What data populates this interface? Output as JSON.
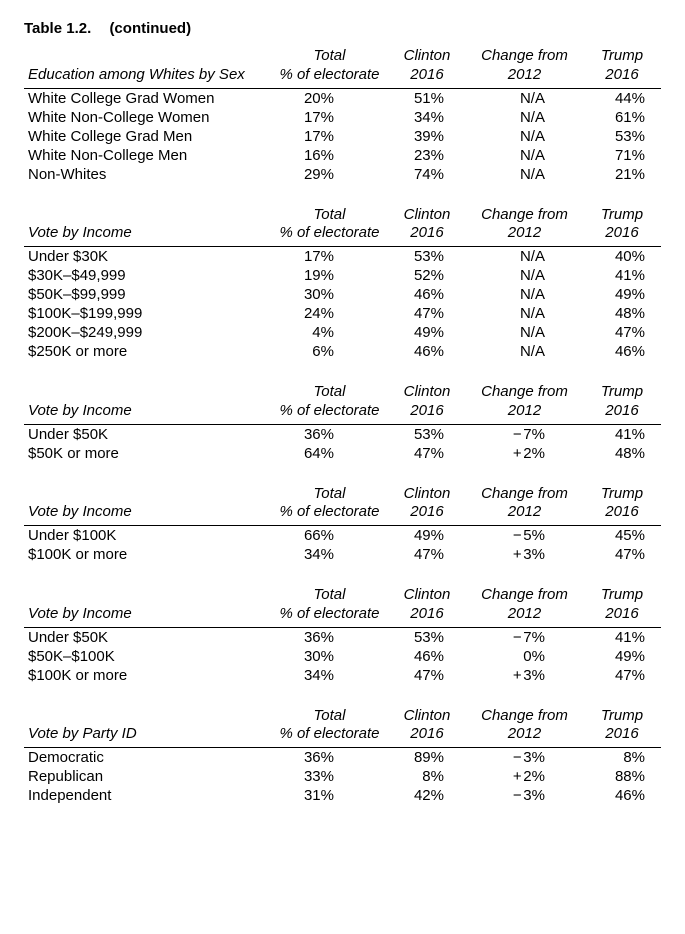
{
  "caption": {
    "label": "Table 1.2.",
    "cont": "(continued)"
  },
  "columns": {
    "total_l1": "Total",
    "total_l2": "% of electorate",
    "clinton_l1": "Clinton",
    "clinton_l2": "2016",
    "change_l1": "Change from",
    "change_l2": "2012",
    "trump_l1": "Trump",
    "trump_l2": "2016"
  },
  "sections": [
    {
      "title": "Education among Whites by Sex",
      "rows": [
        {
          "label": "White College Grad Women",
          "total": "20%",
          "clinton": "51%",
          "change": "N/A",
          "trump": "44%"
        },
        {
          "label": "White Non-College Women",
          "total": "17%",
          "clinton": "34%",
          "change": "N/A",
          "trump": "61%"
        },
        {
          "label": "White College Grad Men",
          "total": "17%",
          "clinton": "39%",
          "change": "N/A",
          "trump": "53%"
        },
        {
          "label": "White Non-College Men",
          "total": "16%",
          "clinton": "23%",
          "change": "N/A",
          "trump": "71%"
        },
        {
          "label": "Non-Whites",
          "total": "29%",
          "clinton": "74%",
          "change": "N/A",
          "trump": "21%"
        }
      ]
    },
    {
      "title": "Vote by Income",
      "rows": [
        {
          "label": "Under $30K",
          "total": "17%",
          "clinton": "53%",
          "change": "N/A",
          "trump": "40%"
        },
        {
          "label": "$30K–$49,999",
          "total": "19%",
          "clinton": "52%",
          "change": "N/A",
          "trump": "41%"
        },
        {
          "label": "$50K–$99,999",
          "total": "30%",
          "clinton": "46%",
          "change": "N/A",
          "trump": "49%"
        },
        {
          "label": "$100K–$199,999",
          "total": "24%",
          "clinton": "47%",
          "change": "N/A",
          "trump": "48%"
        },
        {
          "label": "$200K–$249,999",
          "total": "4%",
          "clinton": "49%",
          "change": "N/A",
          "trump": "47%"
        },
        {
          "label": "$250K or more",
          "total": "6%",
          "clinton": "46%",
          "change": "N/A",
          "trump": "46%"
        }
      ]
    },
    {
      "title": "Vote by Income",
      "rows": [
        {
          "label": "Under $50K",
          "total": "36%",
          "clinton": "53%",
          "change_sign": "−",
          "change_val": "7%",
          "trump": "41%"
        },
        {
          "label": "$50K or more",
          "total": "64%",
          "clinton": "47%",
          "change_sign": "+",
          "change_val": "2%",
          "trump": "48%"
        }
      ]
    },
    {
      "title": "Vote by Income",
      "rows": [
        {
          "label": "Under $100K",
          "total": "66%",
          "clinton": "49%",
          "change_sign": "−",
          "change_val": "5%",
          "trump": "45%"
        },
        {
          "label": "$100K or more",
          "total": "34%",
          "clinton": "47%",
          "change_sign": "+",
          "change_val": "3%",
          "trump": "47%"
        }
      ]
    },
    {
      "title": "Vote by Income",
      "rows": [
        {
          "label": "Under $50K",
          "total": "36%",
          "clinton": "53%",
          "change_sign": "−",
          "change_val": "7%",
          "trump": "41%"
        },
        {
          "label": "$50K–$100K",
          "total": "30%",
          "clinton": "46%",
          "change_sign": "",
          "change_val": "0%",
          "trump": "49%"
        },
        {
          "label": "$100K or more",
          "total": "34%",
          "clinton": "47%",
          "change_sign": "+",
          "change_val": "3%",
          "trump": "47%"
        }
      ]
    },
    {
      "title": "Vote by Party ID",
      "rows": [
        {
          "label": "Democratic",
          "total": "36%",
          "clinton": "89%",
          "change_sign": "−",
          "change_val": "3%",
          "trump": "8%"
        },
        {
          "label": "Republican",
          "total": "33%",
          "clinton": "8%",
          "change_sign": "+",
          "change_val": "2%",
          "trump": "88%"
        },
        {
          "label": "Independent",
          "total": "31%",
          "clinton": "42%",
          "change_sign": "−",
          "change_val": "3%",
          "trump": "46%"
        }
      ]
    }
  ],
  "style": {
    "font_size_pt": 11,
    "header_italic": true,
    "rule_color": "#000000",
    "text_color": "#000000",
    "background_color": "#ffffff",
    "col_widths_pct": [
      38,
      18,
      12,
      18,
      12
    ]
  }
}
